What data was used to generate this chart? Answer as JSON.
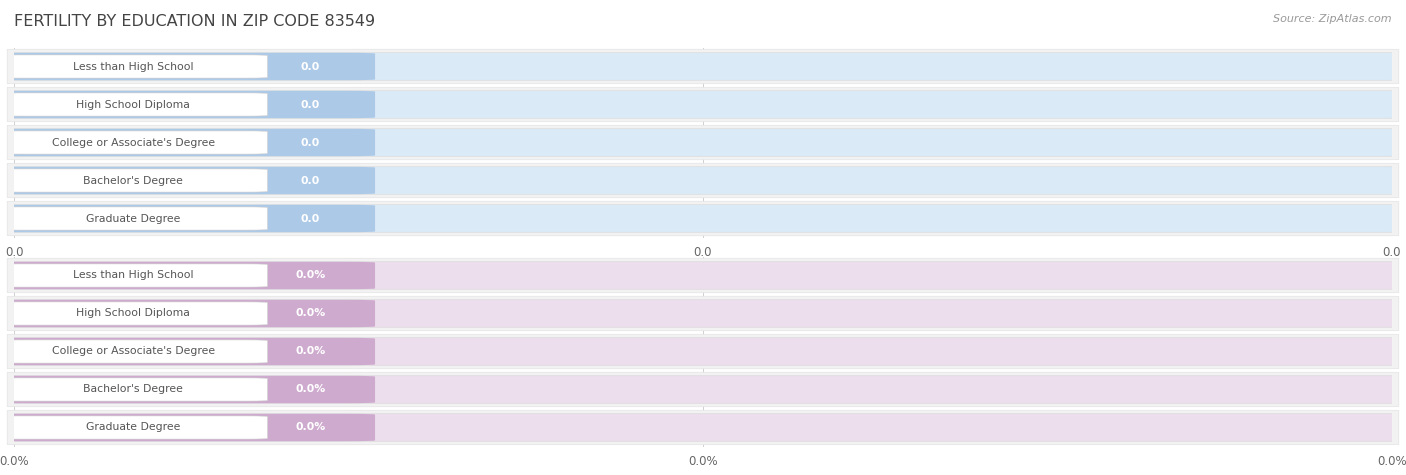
{
  "title": "FERTILITY BY EDUCATION IN ZIP CODE 83549",
  "source": "Source: ZipAtlas.com",
  "categories": [
    "Less than High School",
    "High School Diploma",
    "College or Associate's Degree",
    "Bachelor's Degree",
    "Graduate Degree"
  ],
  "top_values": [
    0.0,
    0.0,
    0.0,
    0.0,
    0.0
  ],
  "bottom_values": [
    0.0,
    0.0,
    0.0,
    0.0,
    0.0
  ],
  "top_bar_color": "#adc9e8",
  "top_bar_bg": "#daeaf7",
  "bottom_bar_color": "#ceaace",
  "bottom_bar_bg": "#eddeed",
  "top_tick_labels": [
    "0.0",
    "0.0",
    "0.0"
  ],
  "bottom_tick_labels": [
    "0.0%",
    "0.0%",
    "0.0%"
  ],
  "bg_color": "#ffffff",
  "row_bg": "#f2f2f2",
  "grid_color": "#d0d0d0",
  "title_color": "#444444",
  "label_color": "#555555",
  "white_box_color": "#ffffff",
  "top_suffix": "",
  "bottom_suffix": "%"
}
